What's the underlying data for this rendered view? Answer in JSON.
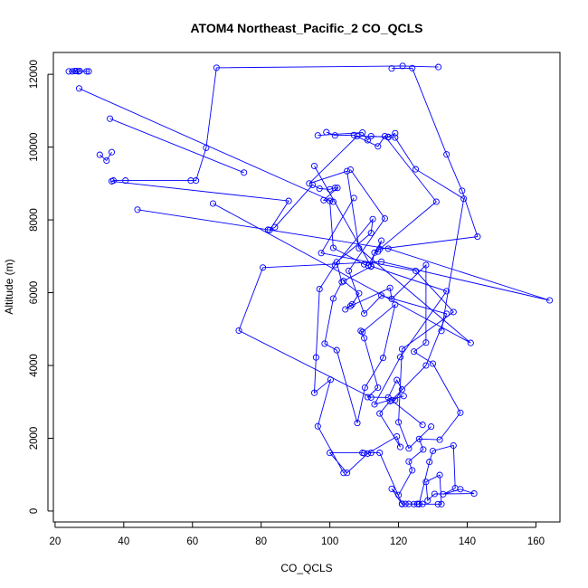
{
  "chart_data": {
    "type": "line",
    "title": "ATOM4 Northeast_Pacific_2 CO_QCLS",
    "xlabel": "CO_QCLS",
    "ylabel": "Altitude (m)",
    "xlim": [
      19.5,
      167
    ],
    "ylim": [
      -300,
      12600
    ],
    "xticks": [
      20,
      40,
      60,
      80,
      100,
      120,
      140,
      160
    ],
    "yticks": [
      0,
      2000,
      4000,
      6000,
      8000,
      10000,
      12000
    ],
    "markers": "open-circle",
    "line_color": "#0000ff",
    "series": [
      {
        "points": [
          [
            131.6,
            12200
          ],
          [
            121.2,
            12230
          ],
          [
            67.0,
            12180
          ],
          [
            64.0,
            9980
          ],
          [
            61.0,
            9080
          ],
          [
            59.5,
            9080
          ],
          [
            40.5,
            9080
          ],
          [
            37.0,
            9080
          ],
          [
            36.5,
            9060
          ],
          [
            88.0,
            8520
          ],
          [
            82.5,
            7720
          ],
          [
            84.0,
            7800
          ],
          [
            95.0,
            8960
          ],
          [
            97.0,
            8860
          ],
          [
            100.0,
            8840
          ],
          [
            101.5,
            8880
          ],
          [
            102.2,
            8880
          ],
          [
            98.2,
            8540
          ],
          [
            100.0,
            8520
          ],
          [
            101.0,
            7230
          ],
          [
            110.0,
            6780
          ],
          [
            111.2,
            6740
          ],
          [
            115.0,
            7430
          ],
          [
            114.0,
            7130
          ],
          [
            113.0,
            7100
          ],
          [
            112.0,
            6720
          ],
          [
            104.0,
            6320
          ],
          [
            108.5,
            5980
          ],
          [
            106.5,
            5680
          ],
          [
            104.5,
            5540
          ],
          [
            106.0,
            5630
          ],
          [
            117.5,
            6130
          ],
          [
            118.0,
            5830
          ],
          [
            128.0,
            6760
          ],
          [
            128.0,
            4630
          ],
          [
            124.5,
            4380
          ],
          [
            130.0,
            4050
          ],
          [
            138.0,
            2700
          ],
          [
            132.0,
            1960
          ],
          [
            126.0,
            1980
          ],
          [
            127.2,
            1690
          ],
          [
            123.0,
            1360
          ],
          [
            124.0,
            1120
          ],
          [
            120.0,
            440
          ],
          [
            118.0,
            610
          ],
          [
            121.0,
            190
          ],
          [
            122.0,
            195
          ],
          [
            123.0,
            195
          ],
          [
            125.5,
            195
          ],
          [
            127.0,
            195
          ],
          [
            126.0,
            195
          ],
          [
            129.0,
            1350
          ],
          [
            130.0,
            1650
          ],
          [
            136.0,
            1800
          ],
          [
            136.5,
            630
          ],
          [
            133.0,
            460
          ],
          [
            138.0,
            600
          ],
          [
            142.0,
            480
          ],
          [
            130.5,
            470
          ],
          [
            128.5,
            290
          ],
          [
            128.0,
            800
          ],
          [
            132.0,
            990
          ],
          [
            132.5,
            190
          ],
          [
            131.5,
            190
          ],
          [
            126.0,
            190
          ],
          [
            124.5,
            190
          ],
          [
            121.0,
            200
          ],
          [
            114.5,
            1600
          ],
          [
            112.0,
            1600
          ],
          [
            110.0,
            1590
          ],
          [
            109.5,
            1600
          ],
          [
            100.0,
            1600
          ],
          [
            105.0,
            1050
          ],
          [
            111.0,
            1580
          ],
          [
            119.5,
            2050
          ],
          [
            120.5,
            1760
          ],
          [
            114.5,
            2680
          ],
          [
            117.5,
            3020
          ],
          [
            119.0,
            3050
          ],
          [
            121.0,
            3340
          ],
          [
            119.5,
            3600
          ],
          [
            117.0,
            3120
          ],
          [
            111.0,
            3130
          ],
          [
            114.0,
            3390
          ],
          [
            110.0,
            4750
          ],
          [
            109.0,
            4950
          ],
          [
            109.5,
            4920
          ],
          [
            119.0,
            5670
          ],
          [
            115.5,
            4210
          ],
          [
            110.2,
            3390
          ],
          [
            108.0,
            2420
          ],
          [
            102.0,
            4420
          ],
          [
            98.5,
            4600
          ],
          [
            101.0,
            5840
          ],
          [
            103.5,
            6290
          ],
          [
            102.0,
            6840
          ],
          [
            112.0,
            7640
          ],
          [
            112.5,
            8020
          ],
          [
            101.5,
            6760
          ],
          [
            97.0,
            6100
          ],
          [
            96.0,
            4220
          ],
          [
            95.5,
            3250
          ],
          [
            100.2,
            3610
          ],
          [
            96.5,
            2330
          ],
          [
            104.0,
            1050
          ]
        ]
      }
    ],
    "secondary_paths": [
      [
        [
          24.0,
          12080
        ],
        [
          25.0,
          12080
        ],
        [
          25.8,
          12090
        ],
        [
          26.2,
          12090
        ],
        [
          26.8,
          12080
        ],
        [
          27.2,
          12090
        ],
        [
          29.2,
          12080
        ],
        [
          29.8,
          12080
        ]
      ],
      [
        [
          27.0,
          11610
        ],
        [
          101.0,
          8500
        ]
      ],
      [
        [
          36.0,
          10780
        ],
        [
          75.0,
          9300
        ]
      ],
      [
        [
          33.0,
          9790
        ],
        [
          35.0,
          9630
        ],
        [
          36.5,
          9860
        ]
      ],
      [
        [
          44.0,
          8280
        ],
        [
          82.0,
          7730
        ],
        [
          117.0,
          7210
        ],
        [
          164.0,
          5790
        ],
        [
          115.0,
          6850
        ],
        [
          80.5,
          6690
        ],
        [
          73.5,
          4960
        ],
        [
          112.0,
          3120
        ]
      ],
      [
        [
          66.0,
          8450
        ],
        [
          141.0,
          4620
        ],
        [
          108.5,
          7220
        ],
        [
          105.0,
          9340
        ],
        [
          94.0,
          9000
        ],
        [
          108.0,
          10300
        ],
        [
          117.0,
          10280
        ],
        [
          119.0,
          10380
        ]
      ],
      [
        [
          99.0,
          10410
        ],
        [
          101.5,
          10320
        ],
        [
          107.0,
          10330
        ],
        [
          114.0,
          10020
        ],
        [
          116.0,
          10300
        ],
        [
          131.0,
          8500
        ],
        [
          114.5,
          7200
        ],
        [
          143.0,
          7540
        ],
        [
          138.5,
          8800
        ],
        [
          134.0,
          9800
        ],
        [
          124.0,
          12170
        ],
        [
          118.0,
          12160
        ]
      ],
      [
        [
          96.5,
          10320
        ],
        [
          109.5,
          10400
        ],
        [
          111.0,
          10190
        ],
        [
          112.0,
          10300
        ],
        [
          117.0,
          10270
        ],
        [
          119.0,
          10260
        ],
        [
          125.0,
          9390
        ],
        [
          139.0,
          8580
        ],
        [
          132.5,
          4950
        ]
      ],
      [
        [
          95.5,
          9480
        ],
        [
          112.0,
          6730
        ],
        [
          134.0,
          6040
        ],
        [
          120.5,
          4230
        ],
        [
          113.0,
          2930
        ],
        [
          121.5,
          3160
        ]
      ],
      [
        [
          107.0,
          8600
        ],
        [
          97.5,
          7090
        ],
        [
          125.0,
          6600
        ],
        [
          136.0,
          5470
        ],
        [
          121.0,
          4450
        ],
        [
          120.0,
          2440
        ],
        [
          123.0,
          1720
        ],
        [
          129.5,
          2320
        ]
      ],
      [
        [
          106.0,
          9380
        ],
        [
          116.0,
          8040
        ],
        [
          105.5,
          6600
        ],
        [
          110.0,
          5430
        ],
        [
          115.0,
          5920
        ],
        [
          134.0,
          5420
        ],
        [
          128.0,
          4000
        ],
        [
          118.0,
          3040
        ],
        [
          127.0,
          2370
        ]
      ]
    ]
  }
}
